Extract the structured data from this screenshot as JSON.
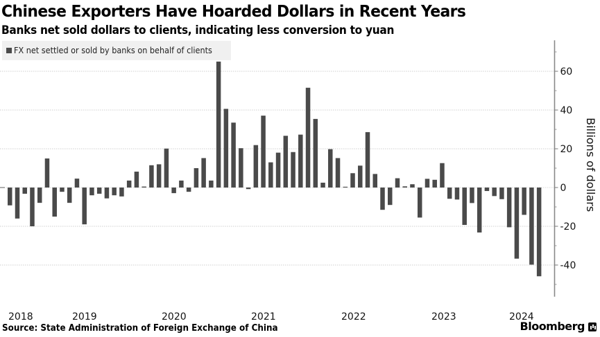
{
  "header": {
    "title": "Chinese Exporters Have Hoarded Dollars in Recent Years",
    "subtitle": "Banks net sold dollars to clients, indicating less conversion to yuan"
  },
  "footer": {
    "source": "Source: State Administration of Foreign Exchange of China",
    "brand": "Bloomberg",
    "brand_icon": "bloomberg-terminal-icon"
  },
  "chart_data": {
    "type": "bar",
    "title": "Chinese Exporters Have Hoarded Dollars in Recent Years",
    "subtitle": "Banks net sold dollars to clients, indicating less conversion to yuan",
    "xlabel": "",
    "ylabel": "Billions of dollars",
    "ylim": [
      -56,
      76
    ],
    "yticks": [
      60,
      40,
      20,
      0,
      -20,
      -40
    ],
    "ytick_labels": [
      "60",
      "40",
      "20",
      "0",
      "-20",
      "-40"
    ],
    "grid": true,
    "legend_position": "top-left",
    "x_tick_labels": [
      "2018",
      "2019",
      "2020",
      "2021",
      "2022",
      "2023",
      "2024"
    ],
    "start_month": "2018-03",
    "series": [
      {
        "name": "FX net settled or sold by banks on behalf of clients",
        "color": "#4a4a4a",
        "values": [
          -9.2,
          -16,
          -3.2,
          -20,
          -7.9,
          15,
          -15,
          -2.2,
          -7.9,
          4.6,
          -19,
          -4,
          -3.2,
          -5.6,
          -4,
          -4.6,
          3.6,
          8.2,
          0.5,
          11.5,
          12,
          20.1,
          -2.9,
          3.6,
          -2.2,
          10,
          15.2,
          3.6,
          65,
          40.6,
          33.5,
          20.3,
          -0.8,
          21.9,
          37.1,
          13,
          18,
          26.7,
          18.3,
          27.3,
          51.5,
          35.4,
          2.5,
          19.8,
          15.2,
          0.4,
          7.4,
          11.3,
          28.6,
          7,
          -11.5,
          -9,
          4.8,
          0.6,
          1.7,
          -15.5,
          4.5,
          4,
          12.6,
          -5.8,
          -6.2,
          -19.3,
          -8,
          -23.2,
          -1.8,
          -4.4,
          -6,
          -20.5,
          -36.7,
          -14.1,
          -39.8,
          -45.8
        ]
      }
    ]
  }
}
